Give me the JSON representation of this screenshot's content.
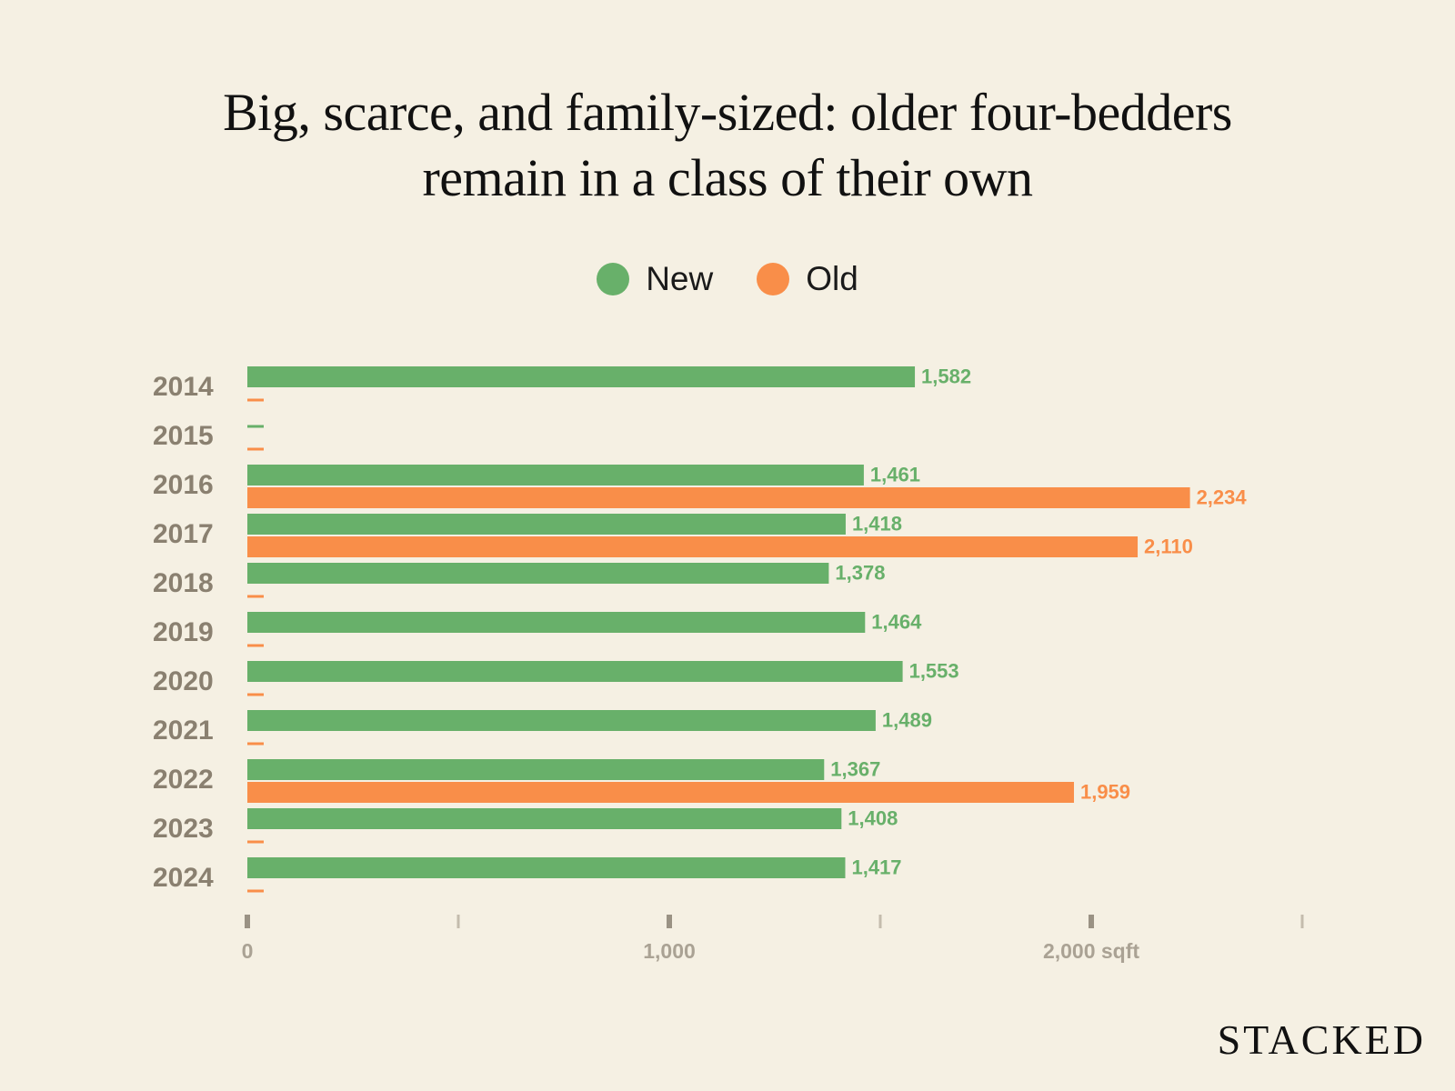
{
  "chart_data": {
    "type": "bar",
    "orientation": "horizontal",
    "title": "Big, scarce, and family-sized: older four-bedders remain in a class of their own",
    "title_lines": [
      "Big, scarce, and family-sized: older four-bedders",
      "remain in a class of their own"
    ],
    "categories": [
      "2014",
      "2015",
      "2016",
      "2017",
      "2018",
      "2019",
      "2020",
      "2021",
      "2022",
      "2023",
      "2024"
    ],
    "series": [
      {
        "name": "New",
        "color": "#68b06a",
        "values": [
          1582,
          null,
          1461,
          1418,
          1378,
          1464,
          1553,
          1489,
          1367,
          1408,
          1417
        ],
        "labels": [
          "1,582",
          "",
          "1,461",
          "1,418",
          "1,378",
          "1,464",
          "1,553",
          "1,489",
          "1,367",
          "1,408",
          "1,417"
        ]
      },
      {
        "name": "Old",
        "color": "#f98e49",
        "values": [
          null,
          null,
          2234,
          2110,
          null,
          null,
          null,
          null,
          1959,
          null,
          null
        ],
        "labels": [
          "",
          "",
          "2,234",
          "2,110",
          "",
          "",
          "",
          "",
          "1,959",
          "",
          ""
        ]
      }
    ],
    "x_ticks": [
      0,
      500,
      1000,
      1500,
      2000,
      2500
    ],
    "x_tick_labels": [
      "0",
      "",
      "1,000",
      "",
      "2,000 sqft",
      ""
    ],
    "xlim": [
      0,
      2500
    ],
    "legend_position": "top-center",
    "grid": false
  },
  "brand": "STACKED"
}
